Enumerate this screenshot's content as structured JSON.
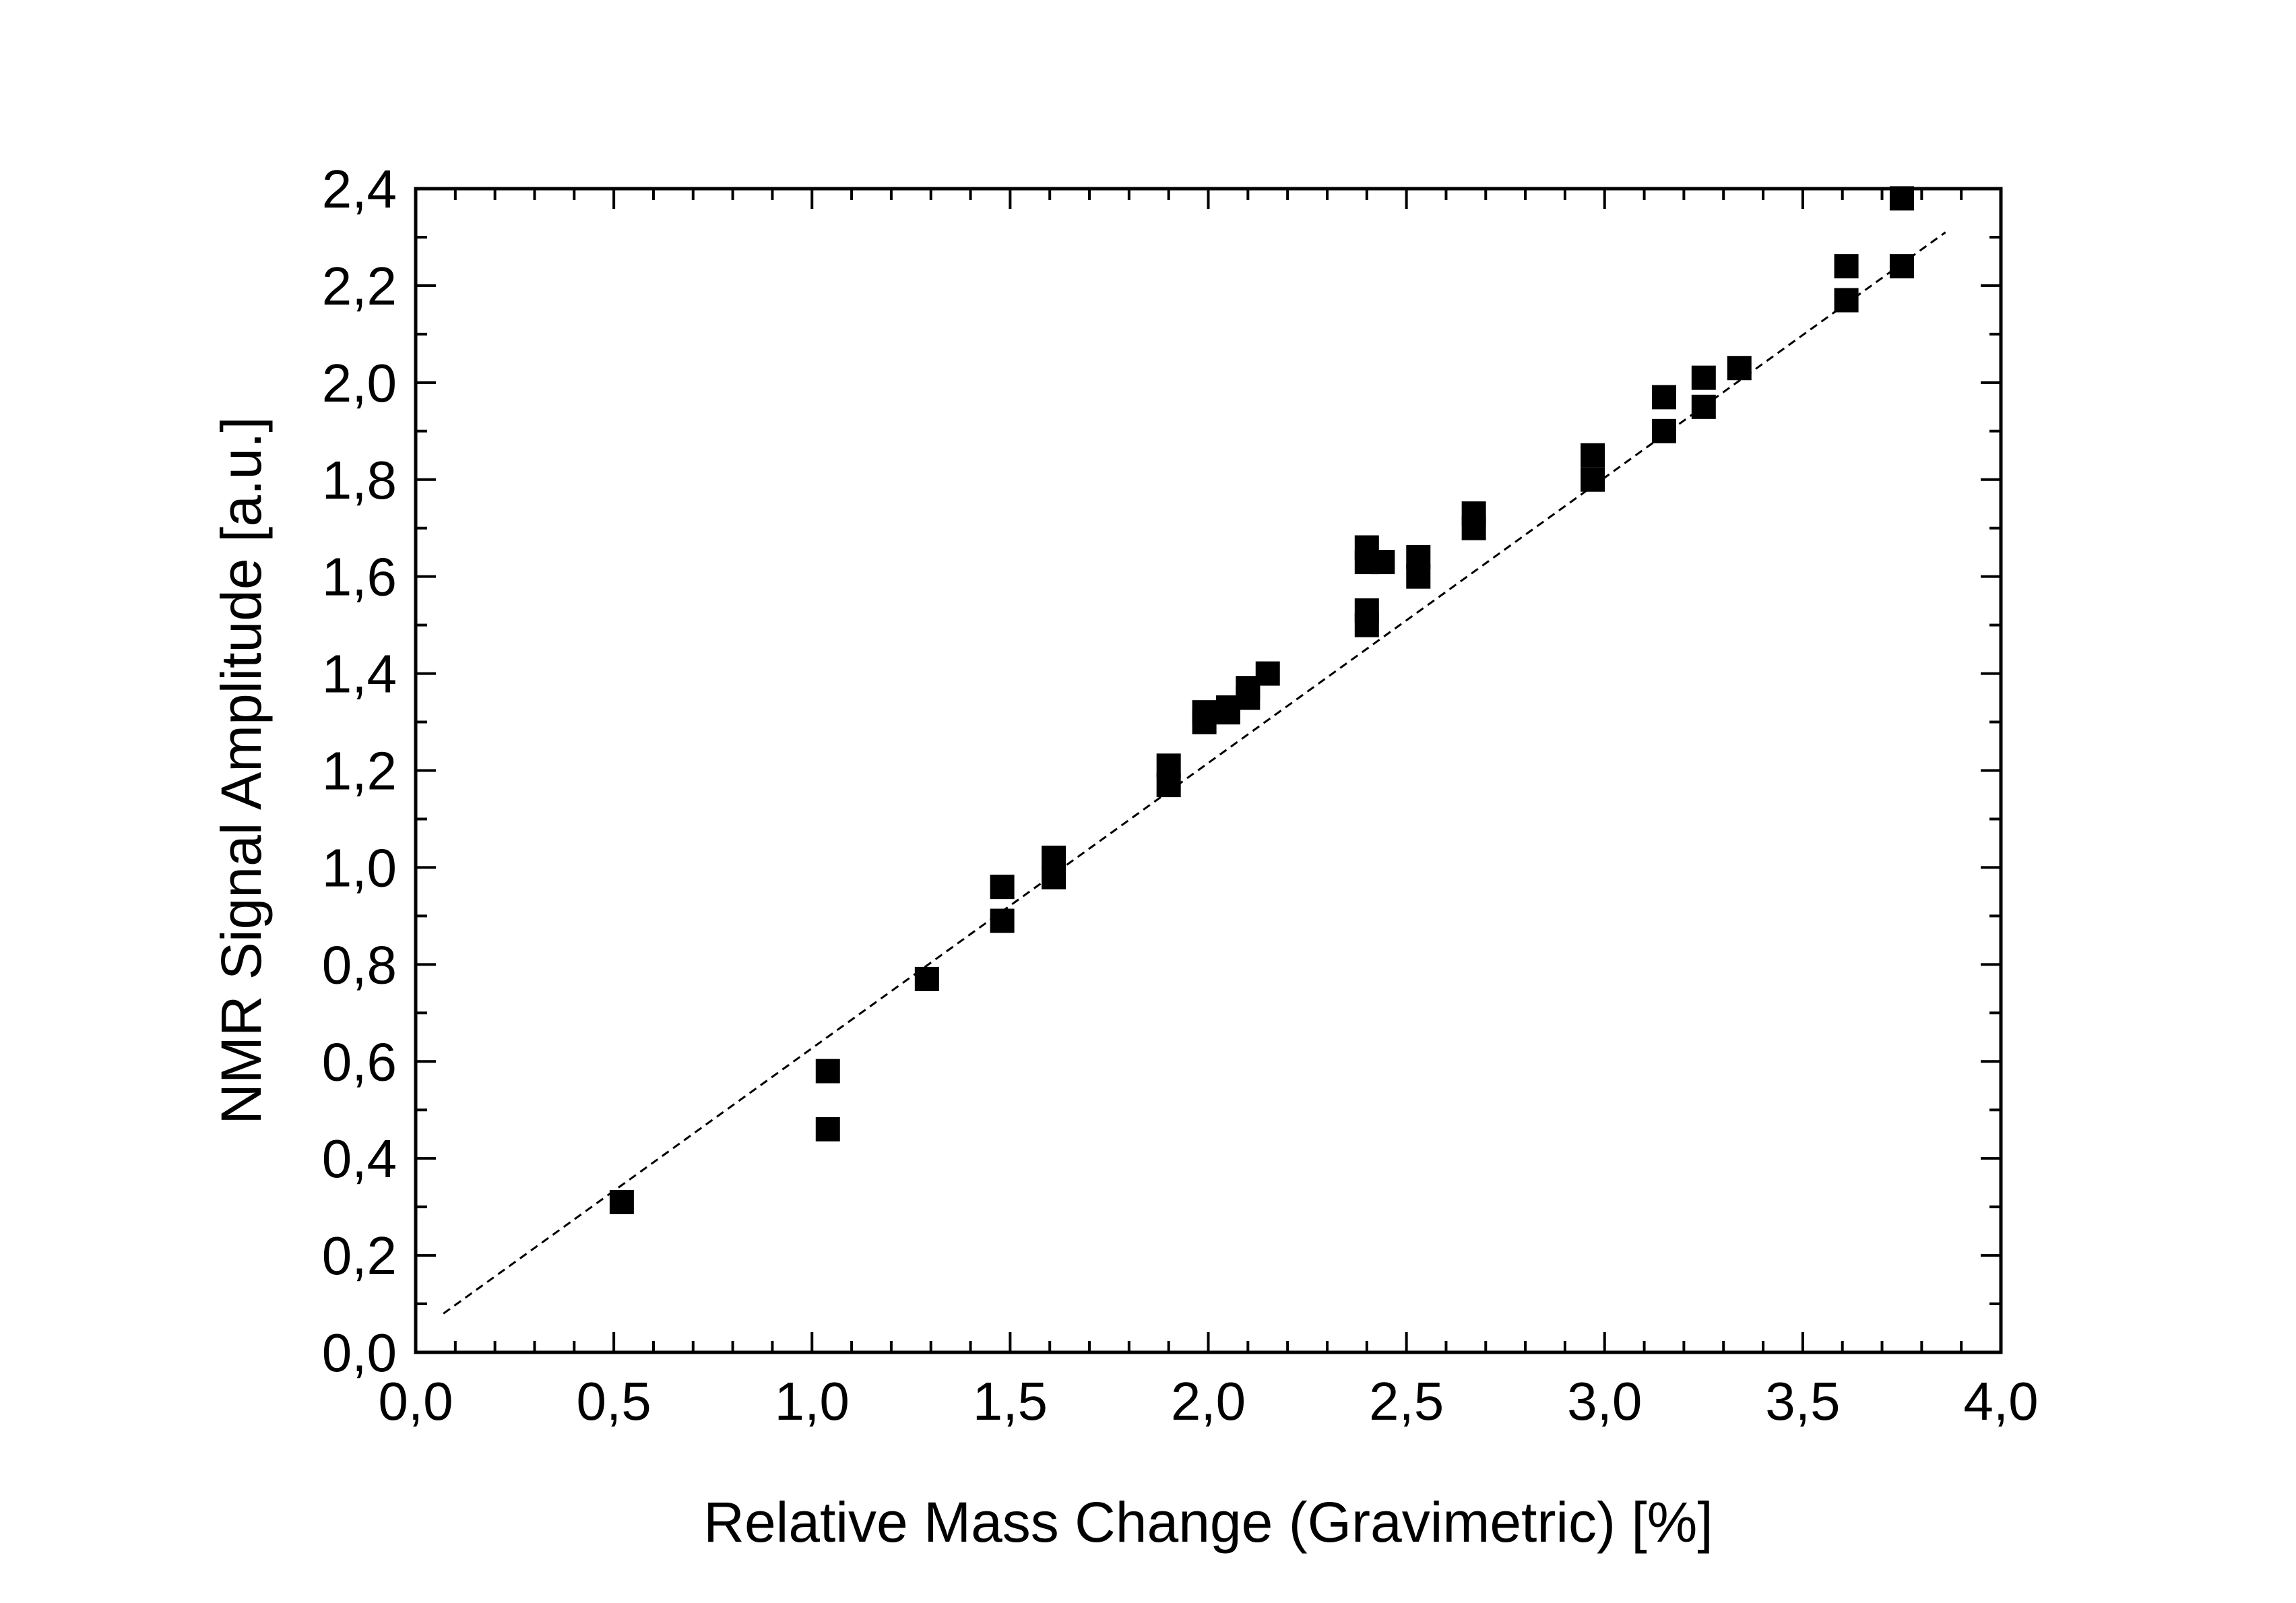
{
  "chart_data": {
    "type": "scatter",
    "xlabel": "Relative Mass Change (Gravimetric) [%]",
    "ylabel": "NMR Signal Amplitude [a.u.]",
    "xlim": [
      0.0,
      4.0
    ],
    "ylim": [
      0.0,
      2.4
    ],
    "x_ticks": [
      "0,0",
      "0,5",
      "1,0",
      "1,5",
      "2,0",
      "2,5",
      "3,0",
      "3,5",
      "4,0"
    ],
    "y_ticks": [
      "0,0",
      "0,2",
      "0,4",
      "0,6",
      "0,8",
      "1,0",
      "1,2",
      "1,4",
      "1,6",
      "1,8",
      "2,0",
      "2,2",
      "2,4"
    ],
    "grid": false,
    "legend": "none",
    "marker": "filled-square",
    "marker_color": "#000000",
    "points": [
      [
        0.52,
        0.31
      ],
      [
        1.04,
        0.58
      ],
      [
        1.04,
        0.46
      ],
      [
        1.29,
        0.77
      ],
      [
        1.48,
        0.96
      ],
      [
        1.48,
        0.89
      ],
      [
        1.61,
        1.02
      ],
      [
        1.61,
        0.98
      ],
      [
        1.9,
        1.21
      ],
      [
        1.9,
        1.17
      ],
      [
        1.99,
        1.32
      ],
      [
        1.99,
        1.3
      ],
      [
        2.05,
        1.33
      ],
      [
        2.05,
        1.32
      ],
      [
        2.1,
        1.37
      ],
      [
        2.1,
        1.35
      ],
      [
        2.15,
        1.4
      ],
      [
        2.4,
        1.66
      ],
      [
        2.4,
        1.63
      ],
      [
        2.4,
        1.53
      ],
      [
        2.4,
        1.5
      ],
      [
        2.44,
        1.63
      ],
      [
        2.53,
        1.64
      ],
      [
        2.53,
        1.6
      ],
      [
        2.67,
        1.73
      ],
      [
        2.67,
        1.7
      ],
      [
        2.97,
        1.85
      ],
      [
        2.97,
        1.8
      ],
      [
        3.15,
        1.97
      ],
      [
        3.15,
        1.9
      ],
      [
        3.25,
        2.01
      ],
      [
        3.25,
        1.95
      ],
      [
        3.34,
        2.03
      ],
      [
        3.61,
        2.24
      ],
      [
        3.61,
        2.17
      ],
      [
        3.75,
        2.38
      ],
      [
        3.75,
        2.24
      ]
    ],
    "fit_line": {
      "style": "dashed",
      "x": [
        0.07,
        3.86
      ],
      "y": [
        0.08,
        2.31
      ]
    }
  }
}
